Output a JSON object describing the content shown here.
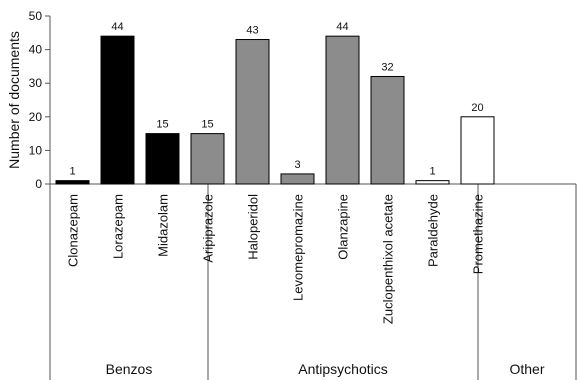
{
  "chart_data": {
    "type": "bar",
    "title": "",
    "xlabel": "",
    "ylabel": "Number of documents",
    "ylim": [
      0,
      50
    ],
    "yticks": [
      0,
      10,
      20,
      30,
      40,
      50
    ],
    "grid": false,
    "legend": "none",
    "groups": [
      {
        "name": "Benzos",
        "categories": [
          "Clonazepam",
          "Lorazepam",
          "Midazolam"
        ]
      },
      {
        "name": "Antipsychotics",
        "categories": [
          "Aripiprazole",
          "Haloperidol",
          "Levomepromazine",
          "Olanzapine",
          "Zuclopenthixol acetate"
        ]
      },
      {
        "name": "Other",
        "categories": [
          "Paraldehyde",
          "Promethazine"
        ]
      }
    ],
    "categories": [
      "Clonazepam",
      "Lorazepam",
      "Midazolam",
      "Aripiprazole",
      "Haloperidol",
      "Levomepromazine",
      "Olanzapine",
      "Zuclopenthixol acetate",
      "Paraldehyde",
      "Promethazine"
    ],
    "values": [
      1,
      44,
      15,
      15,
      43,
      3,
      44,
      32,
      1,
      20
    ],
    "colors": {
      "Benzos": "#000000",
      "Antipsychotics": "#8c8c8c",
      "Other": "#ffffff",
      "bar_stroke": "#000000",
      "axis": "#555555"
    }
  }
}
